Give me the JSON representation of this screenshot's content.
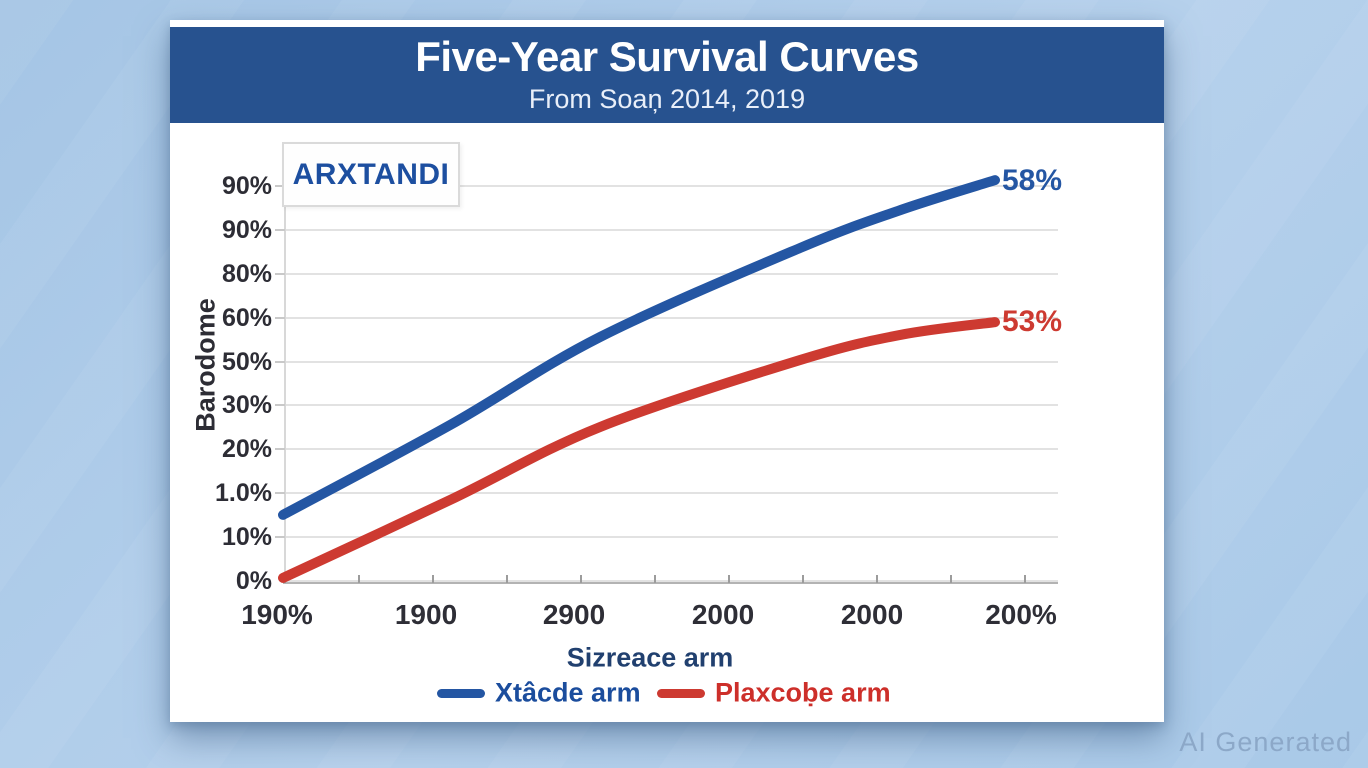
{
  "header": {
    "title": "Five-Year Survival Curves",
    "subtitle": "From Soaņ 2014, 2019"
  },
  "watermark": "AI Generated",
  "colors": {
    "header_bg": "#27528f",
    "page_bg": "#aecbe9",
    "card_bg": "#ffffff",
    "grid": "#e2e2e2",
    "axis": "#b3b3b3",
    "tick_text": "#2e2e36",
    "annotation_text": "#1d4fa0",
    "series_blue": "#2456a3",
    "series_red": "#cd3a31",
    "watermark_text": "#8ca8c8"
  },
  "chart_data": {
    "type": "line",
    "title": "Five-Year Survival Curves",
    "subtitle": "From Soaņ 2014, 2019",
    "xlabel": "Sizreace arm",
    "ylabel": "Barodome",
    "annotation": "ARXTANDI",
    "grid": true,
    "legend_position": "bottom",
    "ytick_labels": [
      "90%",
      "90%",
      "80%",
      "60%",
      "50%",
      "30%",
      "20%",
      "1.0%",
      "10%",
      "0%"
    ],
    "xtick_labels": [
      "190%",
      "1900",
      "2900",
      "2000",
      "2000",
      "200%"
    ],
    "series": [
      {
        "name": "Xtâcde arm",
        "color": "#2456a3",
        "end_label": "58%",
        "points": [
          [
            0,
            0.15
          ],
          [
            0.235,
            0.354
          ],
          [
            0.445,
            0.553
          ],
          [
            0.726,
            0.755
          ],
          [
            0.867,
            0.841
          ],
          [
            1,
            0.909
          ]
        ]
      },
      {
        "name": "Plaxcoḅe arm",
        "color": "#cd3a31",
        "end_label": "53%",
        "points": [
          [
            0,
            0.007
          ],
          [
            0.235,
            0.184
          ],
          [
            0.445,
            0.349
          ],
          [
            0.726,
            0.501
          ],
          [
            0.867,
            0.558
          ],
          [
            1,
            0.587
          ]
        ]
      }
    ]
  }
}
